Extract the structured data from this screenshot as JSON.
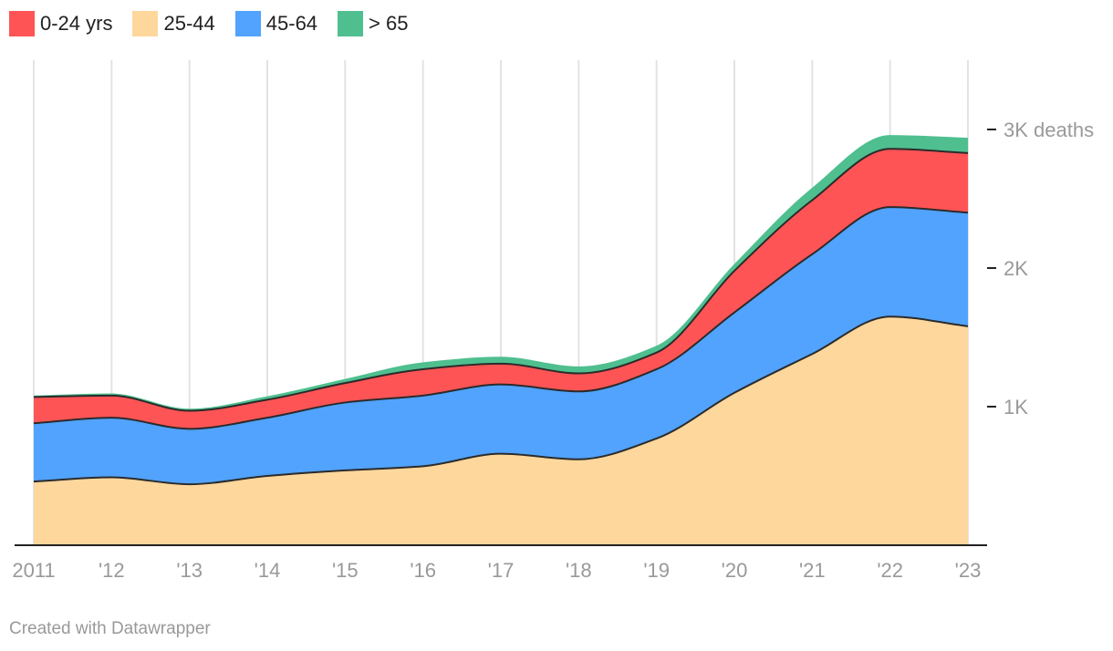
{
  "chart_data": {
    "type": "area",
    "stacked": true,
    "x": [
      "2011",
      "'12",
      "'13",
      "'14",
      "'15",
      "'16",
      "'17",
      "'18",
      "'19",
      "'20",
      "'21",
      "'22",
      "'23"
    ],
    "series": [
      {
        "name": "25-44",
        "color": "#fed79d",
        "values": [
          460,
          490,
          440,
          500,
          540,
          570,
          660,
          620,
          770,
          1100,
          1380,
          1650,
          1580
        ]
      },
      {
        "name": "45-64",
        "color": "#51a3fd",
        "values": [
          420,
          430,
          400,
          420,
          490,
          510,
          500,
          490,
          500,
          580,
          720,
          790,
          820
        ]
      },
      {
        "name": "0-24 yrs",
        "color": "#ff5455",
        "values": [
          190,
          160,
          130,
          130,
          140,
          190,
          150,
          130,
          120,
          300,
          390,
          420,
          430
        ]
      },
      {
        "name": "> 65",
        "color": "#4fbf8f",
        "values": [
          10,
          15,
          15,
          25,
          30,
          50,
          50,
          50,
          50,
          50,
          90,
          100,
          110
        ]
      }
    ],
    "legend_order": [
      "0-24 yrs",
      "25-44",
      "45-64",
      "> 65"
    ],
    "y_ticks": [
      {
        "value": 1000,
        "label": "1K"
      },
      {
        "value": 2000,
        "label": "2K"
      },
      {
        "value": 3000,
        "label": "3K deaths"
      }
    ],
    "ylim": [
      0,
      3500
    ],
    "grid": "vertical",
    "legend_position": "top-left",
    "axis_side": "right"
  },
  "footer": {
    "credit": "Created with Datawrapper"
  },
  "colors": {
    "grid": "#e3e3e3",
    "axis": "#222222",
    "tick_text": "#999999",
    "outline": "#2b2b2b"
  }
}
